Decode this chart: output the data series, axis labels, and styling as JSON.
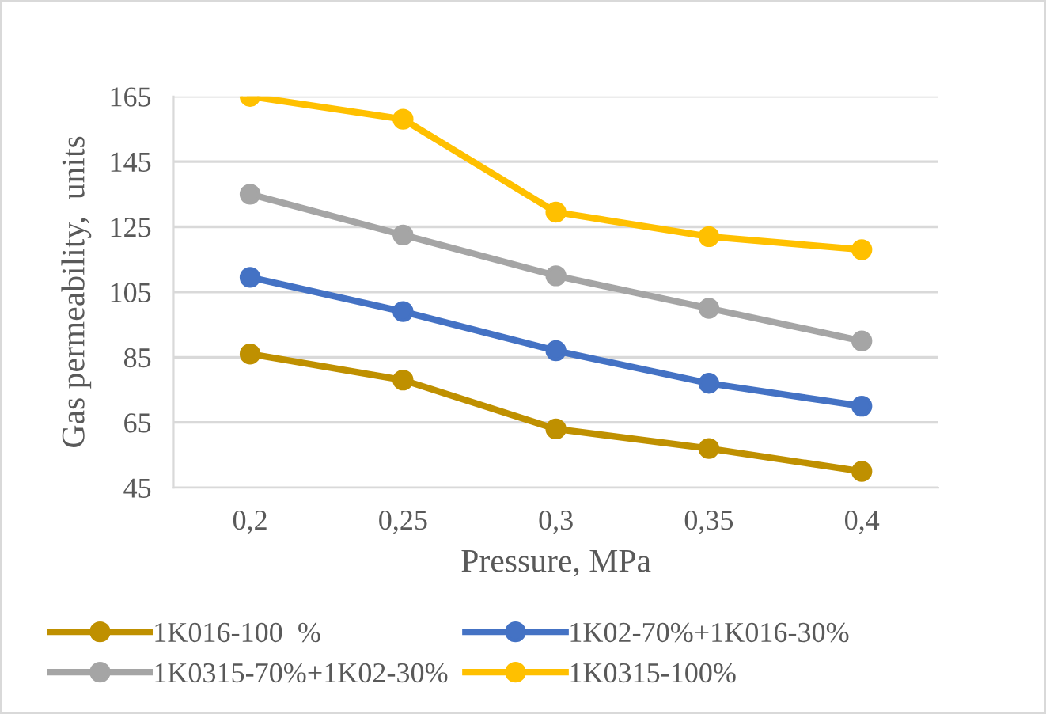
{
  "chart_data": {
    "type": "line",
    "xlabel": "Pressure, MPa",
    "ylabel": "Gas permeability,  units",
    "categories": [
      "0,2",
      "0,25",
      "0,3",
      "0,35",
      "0,4"
    ],
    "series": [
      {
        "name": "1K016-100  %",
        "color": "#bf9000",
        "values": [
          86,
          78,
          63,
          57,
          50
        ]
      },
      {
        "name": "1K02-70%+1K016-30%",
        "color": "#4472c4",
        "values": [
          109.5,
          99,
          87,
          77,
          70
        ]
      },
      {
        "name": "1K0315-70%+1K02-30%",
        "color": "#a5a5a5",
        "values": [
          135,
          122.5,
          110,
          100,
          90
        ]
      },
      {
        "name": "1K0315-100%",
        "color": "#ffc000",
        "values": [
          165,
          158,
          129.5,
          122,
          118
        ]
      }
    ],
    "ylim": [
      45,
      165
    ],
    "yticks": [
      45,
      65,
      85,
      105,
      125,
      145,
      165
    ],
    "grid": "y",
    "legend": "bottom",
    "marker": "circle",
    "line_style": "solid"
  }
}
